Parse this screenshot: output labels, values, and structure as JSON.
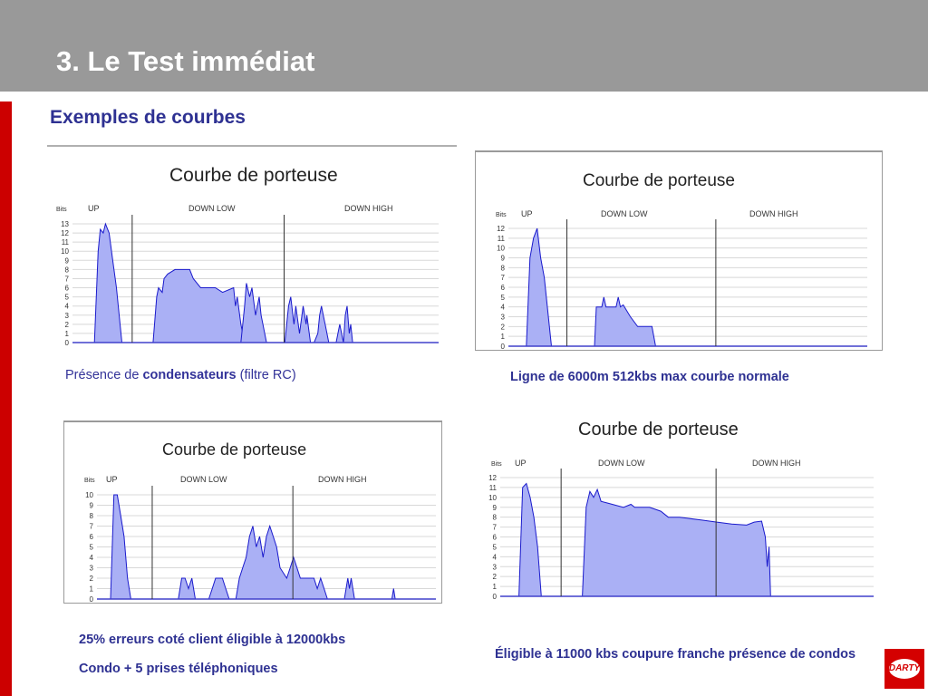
{
  "header": {
    "title": "3. Le Test immédiat"
  },
  "section": {
    "title": "Exemples de courbes"
  },
  "captions": {
    "c1_prefix": "Présence de ",
    "c1_bold": "condensateurs",
    "c1_suffix": " (filtre RC)",
    "c2": "Ligne de 6000m 512kbs max courbe normale",
    "c3_line1": "25% erreurs coté client éligible à 12000kbs",
    "c3_line2": "Condo + 5 prises téléphoniques",
    "c4": "Éligible à 11000 kbs coupure franche  présence de condos"
  },
  "logo": {
    "text": "DARTY"
  },
  "colors": {
    "header_bg": "#999999",
    "accent_blue": "#2e3192",
    "stripe_red": "#cc0000",
    "fill": "#aab0f5",
    "stroke": "#1a1acc"
  },
  "chart_data": [
    {
      "type": "area",
      "title": "Courbe de porteuse",
      "ylabel": "Bits",
      "bands": [
        "UP",
        "DOWN LOW",
        "DOWN HIGH"
      ],
      "ylim": [
        0,
        13
      ],
      "xlim": [
        0,
        100
      ],
      "band_dividers": [
        16.3,
        57.8
      ],
      "segments": [
        [
          [
            6,
            0
          ],
          [
            7,
            10
          ],
          [
            7.6,
            12.4
          ],
          [
            8.4,
            12
          ],
          [
            9,
            13
          ],
          [
            10,
            12
          ],
          [
            11,
            9
          ],
          [
            12,
            6
          ],
          [
            13.5,
            0
          ]
        ],
        [
          [
            22,
            0
          ],
          [
            23,
            5
          ],
          [
            23.5,
            6
          ],
          [
            24.5,
            5.5
          ],
          [
            25,
            7
          ],
          [
            26,
            7.5
          ],
          [
            28,
            8
          ],
          [
            32,
            8
          ],
          [
            33,
            7
          ],
          [
            35,
            6
          ],
          [
            39,
            6
          ],
          [
            41,
            5.5
          ],
          [
            44,
            6
          ],
          [
            44.5,
            4
          ],
          [
            45,
            5
          ],
          [
            46,
            2
          ],
          [
            47,
            0
          ]
        ],
        [
          [
            46,
            0
          ],
          [
            47,
            4
          ],
          [
            47.5,
            6.5
          ],
          [
            48.4,
            5
          ],
          [
            49,
            6
          ],
          [
            50,
            3
          ],
          [
            51,
            5
          ],
          [
            51.5,
            3
          ],
          [
            52,
            2
          ],
          [
            53,
            0
          ]
        ],
        [
          [
            58,
            0
          ],
          [
            59,
            4
          ],
          [
            59.6,
            5
          ],
          [
            60.5,
            2
          ],
          [
            61,
            4
          ],
          [
            62,
            1
          ],
          [
            63,
            4
          ],
          [
            63.8,
            2
          ],
          [
            64,
            3
          ],
          [
            65,
            0
          ]
        ],
        [
          [
            66,
            0
          ],
          [
            67,
            1
          ],
          [
            67.5,
            3
          ],
          [
            68,
            4
          ],
          [
            68.5,
            3
          ],
          [
            69,
            2
          ],
          [
            70,
            0
          ]
        ],
        [
          [
            72,
            0
          ],
          [
            72.5,
            1
          ],
          [
            73,
            2
          ],
          [
            73.5,
            1
          ],
          [
            74,
            0
          ],
          [
            74.5,
            3
          ],
          [
            75,
            4
          ],
          [
            75.6,
            1
          ],
          [
            76,
            2
          ],
          [
            76.5,
            0
          ]
        ]
      ]
    },
    {
      "type": "area",
      "title": "Courbe de porteuse",
      "ylabel": "Bits",
      "bands": [
        "UP",
        "DOWN LOW",
        "DOWN HIGH"
      ],
      "ylim": [
        0,
        12
      ],
      "xlim": [
        0,
        100
      ],
      "band_dividers": [
        16.3,
        57.8
      ],
      "segments": [
        [
          [
            5,
            0
          ],
          [
            6,
            9
          ],
          [
            7,
            11
          ],
          [
            8,
            12
          ],
          [
            9,
            9
          ],
          [
            10,
            7
          ],
          [
            12,
            0
          ]
        ],
        [
          [
            24,
            0
          ],
          [
            24.5,
            4
          ],
          [
            26,
            4
          ],
          [
            26.6,
            5
          ],
          [
            27.2,
            4
          ],
          [
            30,
            4
          ],
          [
            30.6,
            5
          ],
          [
            31.2,
            4
          ],
          [
            32,
            4.2
          ],
          [
            34,
            3
          ],
          [
            36,
            2
          ],
          [
            40,
            2
          ],
          [
            41,
            0
          ]
        ]
      ]
    },
    {
      "type": "area",
      "title": "Courbe de porteuse",
      "ylabel": "Bits",
      "bands": [
        "UP",
        "DOWN LOW",
        "DOWN HIGH"
      ],
      "ylim": [
        0,
        10
      ],
      "xlim": [
        0,
        100
      ],
      "band_dividers": [
        16.3,
        57.8
      ],
      "segments": [
        [
          [
            4,
            0
          ],
          [
            5,
            10
          ],
          [
            6,
            10
          ],
          [
            7,
            8
          ],
          [
            8,
            6
          ],
          [
            9,
            2
          ],
          [
            10,
            0
          ]
        ],
        [
          [
            24,
            0
          ],
          [
            25,
            2
          ],
          [
            26,
            2
          ],
          [
            27,
            1
          ],
          [
            28,
            2
          ],
          [
            29,
            0
          ]
        ],
        [
          [
            33,
            0
          ],
          [
            34,
            1
          ],
          [
            35,
            2
          ],
          [
            37,
            2
          ],
          [
            38,
            1
          ],
          [
            39,
            0
          ]
        ],
        [
          [
            41,
            0
          ],
          [
            42,
            2
          ],
          [
            43,
            3
          ],
          [
            44,
            4
          ],
          [
            45,
            6
          ],
          [
            46,
            7
          ],
          [
            47,
            5
          ],
          [
            48,
            6
          ],
          [
            49,
            4
          ],
          [
            50,
            6
          ],
          [
            51,
            7
          ],
          [
            52,
            6
          ],
          [
            53,
            5
          ],
          [
            54,
            3
          ],
          [
            56,
            2
          ],
          [
            57,
            3
          ],
          [
            58,
            4
          ],
          [
            59,
            3
          ],
          [
            60,
            2
          ],
          [
            62,
            2
          ],
          [
            64,
            2
          ],
          [
            65,
            1
          ],
          [
            66,
            2
          ],
          [
            67,
            1
          ],
          [
            68,
            0
          ]
        ],
        [
          [
            73,
            0
          ],
          [
            73.5,
            1
          ],
          [
            74,
            2
          ],
          [
            74.5,
            1
          ],
          [
            75,
            2
          ],
          [
            76,
            0
          ]
        ],
        [
          [
            87,
            0
          ],
          [
            87.5,
            1
          ],
          [
            88,
            0
          ]
        ]
      ]
    },
    {
      "type": "area",
      "title": "Courbe de porteuse",
      "ylabel": "Bits",
      "bands": [
        "UP",
        "DOWN LOW",
        "DOWN HIGH"
      ],
      "ylim": [
        0,
        12
      ],
      "xlim": [
        0,
        100
      ],
      "band_dividers": [
        16.3,
        57.8
      ],
      "segments": [
        [
          [
            5,
            0
          ],
          [
            6,
            11
          ],
          [
            7,
            11.4
          ],
          [
            8,
            10
          ],
          [
            9,
            8
          ],
          [
            10,
            5
          ],
          [
            11,
            0
          ]
        ],
        [
          [
            22,
            0
          ],
          [
            23,
            9
          ],
          [
            24,
            10.6
          ],
          [
            25,
            10
          ],
          [
            26,
            10.8
          ],
          [
            27,
            9.6
          ],
          [
            29,
            9.4
          ],
          [
            33,
            9
          ],
          [
            35,
            9.3
          ],
          [
            36,
            9
          ],
          [
            40,
            9
          ],
          [
            43,
            8.6
          ],
          [
            45,
            8
          ],
          [
            48,
            8
          ],
          [
            50,
            7.9
          ],
          [
            54,
            7.7
          ],
          [
            58,
            7.5
          ],
          [
            62,
            7.3
          ],
          [
            66,
            7.2
          ],
          [
            68,
            7.5
          ],
          [
            70,
            7.6
          ],
          [
            71,
            6
          ],
          [
            71.5,
            3
          ],
          [
            72,
            5
          ],
          [
            72.4,
            0
          ]
        ]
      ]
    }
  ]
}
